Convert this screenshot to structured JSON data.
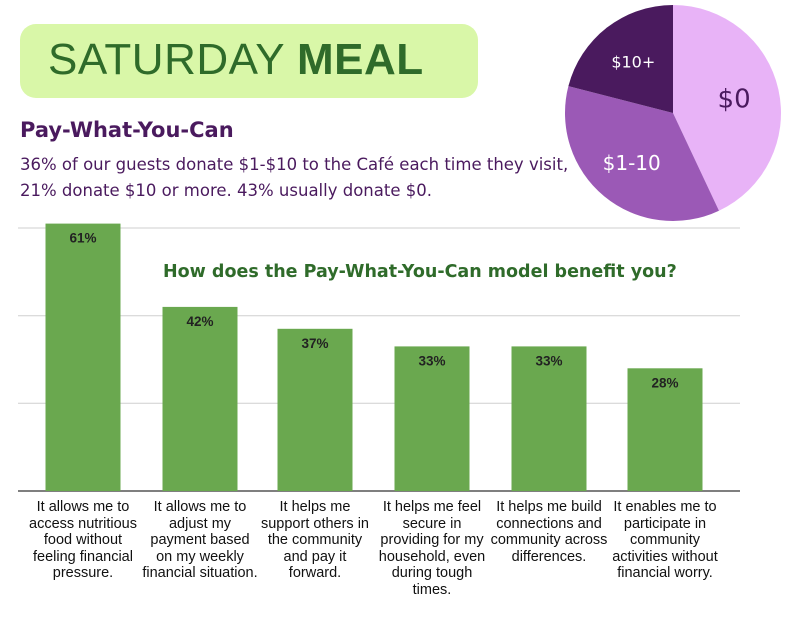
{
  "header": {
    "title_regular": "SATURDAY",
    "title_bold": "MEAL",
    "subtitle": "Pay-What-You-Can",
    "description": "36% of our guests donate $1-$10 to the Café each time they visit, 21% donate $10 or more. 43% usually donate $0."
  },
  "colors": {
    "title_bg": "#d9f7a8",
    "title_text": "#2f6b2a",
    "purple_text": "#4a1a5e",
    "bar": "#6aa84f",
    "pie_dark": "#4a1a5e",
    "pie_mid": "#9b59b6",
    "pie_light": "#e8b3f7"
  },
  "chart_data": [
    {
      "type": "pie",
      "slices": [
        {
          "label": "$0",
          "value": 43,
          "color": "#e8b3f7"
        },
        {
          "label": "$1-10",
          "value": 36,
          "color": "#9b59b6"
        },
        {
          "label": "$10+",
          "value": 21,
          "color": "#4a1a5e"
        }
      ]
    },
    {
      "type": "bar",
      "title": "How does the Pay-What-You-Can model benefit you?",
      "categories": [
        "It allows me to access nutritious food without feeling financial pressure.",
        "It allows me to adjust my payment based on my weekly financial situation.",
        "It helps me support others in the community and pay it forward.",
        "It helps me feel secure in providing for my household, even during tough times.",
        "It helps me build connections and community across differences.",
        "It enables me to participate in community activities without financial worry."
      ],
      "values": [
        61,
        42,
        37,
        33,
        33,
        28
      ],
      "data_labels": [
        "61%",
        "42%",
        "37%",
        "33%",
        "33%",
        "28%"
      ],
      "ylim": [
        0,
        60
      ],
      "grid": true
    }
  ]
}
